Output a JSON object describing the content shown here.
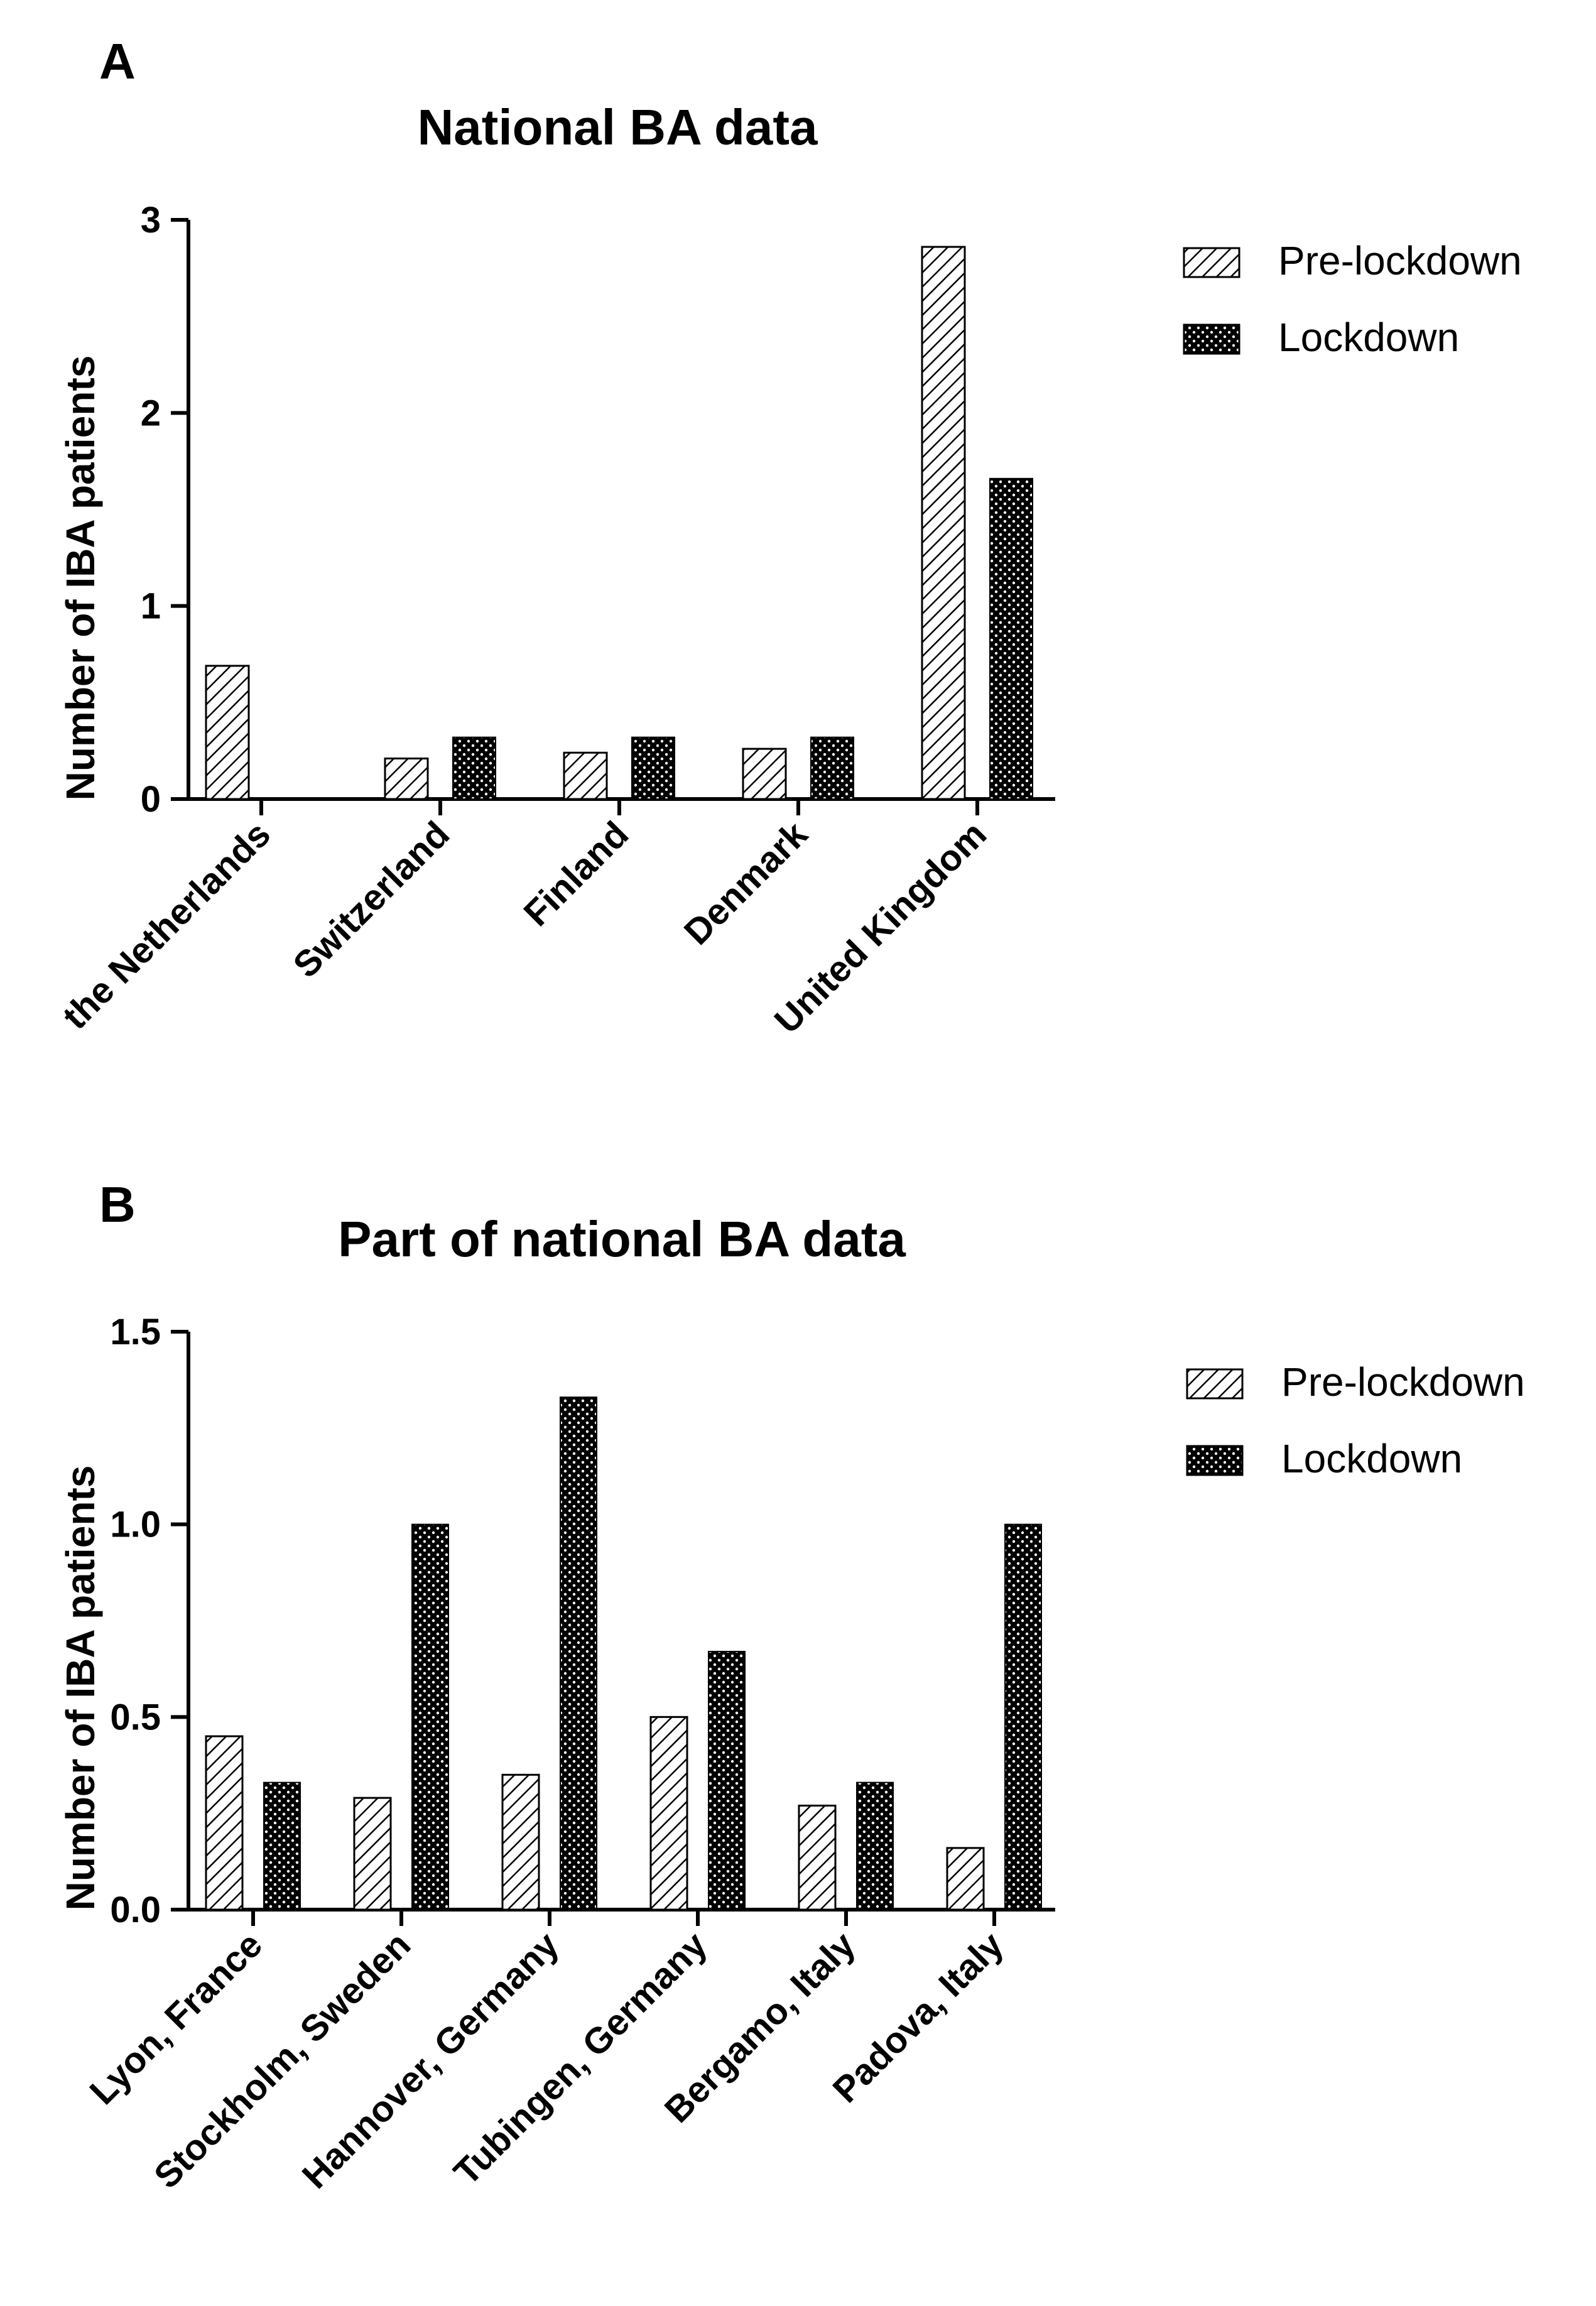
{
  "colors": {
    "ink": "#000000",
    "background": "#ffffff"
  },
  "chart_data": [
    {
      "panel": "A",
      "type": "bar",
      "title": "National BA data",
      "xlabel": "",
      "ylabel": "Number of IBA patients",
      "ylim": [
        0,
        3
      ],
      "yticks": [
        0,
        1,
        2,
        3
      ],
      "ytick_labels": [
        "0",
        "1",
        "2",
        "3"
      ],
      "categories": [
        "the Netherlands",
        "Switzerland",
        "Finland",
        "Denmark",
        "United Kingdom"
      ],
      "series": [
        {
          "name": "Pre-lockdown",
          "pattern": "diagonal-hatch",
          "values": [
            0.69,
            0.21,
            0.24,
            0.26,
            2.86
          ]
        },
        {
          "name": "Lockdown",
          "pattern": "dotted-black",
          "values": [
            0,
            0.32,
            0.32,
            0.32,
            1.66
          ]
        }
      ],
      "legend_position": "top-right",
      "grid": false
    },
    {
      "panel": "B",
      "type": "bar",
      "title": "Part of national BA data",
      "xlabel": "",
      "ylabel": "Number of IBA patients",
      "ylim": [
        0,
        1.5
      ],
      "yticks": [
        0,
        0.5,
        1.0,
        1.5
      ],
      "ytick_labels": [
        "0.0",
        "0.5",
        "1.0",
        "1.5"
      ],
      "categories": [
        "Lyon, France",
        "Stockholm, Sweden",
        "Hannover, Germany",
        "Tubingen, Germany",
        "Bergamo, Italy",
        "Padova, Italy"
      ],
      "series": [
        {
          "name": "Pre-lockdown",
          "pattern": "diagonal-hatch",
          "values": [
            0.45,
            0.29,
            0.35,
            0.5,
            0.27,
            0.16
          ]
        },
        {
          "name": "Lockdown",
          "pattern": "dotted-black",
          "values": [
            0.33,
            1.0,
            1.33,
            0.67,
            0.33,
            1.0
          ]
        }
      ],
      "legend_position": "top-right",
      "grid": false
    }
  ]
}
